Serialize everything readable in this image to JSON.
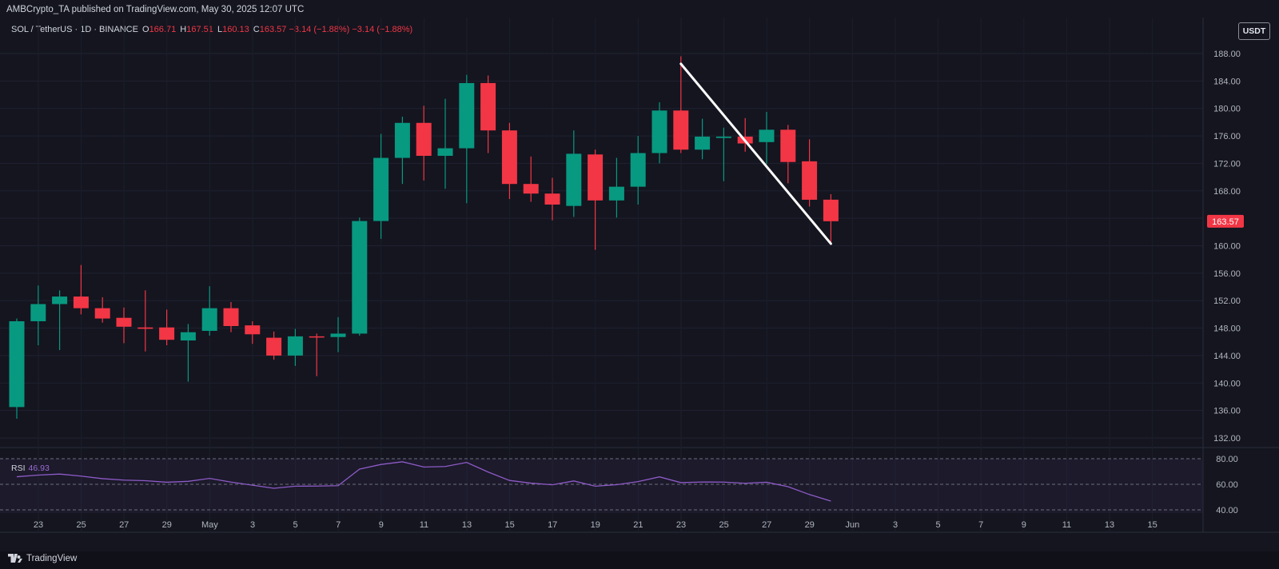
{
  "header": {
    "published": "AMBCrypto_TA published on TradingView.com, May 30, 2025 12:07 UTC"
  },
  "symbol": {
    "title": "SOL / TetherUS · 1D · BINANCE",
    "o_label": "O",
    "o": "166.71",
    "h_label": "H",
    "h": "167.51",
    "l_label": "L",
    "l": "160.13",
    "c_label": "C",
    "c": "163.57",
    "change": "−3.14 (−1.88%)",
    "change2": "−3.14 (−1.88%)"
  },
  "currency_button": "USDT",
  "rsi": {
    "name": "RSI",
    "value": "46.93"
  },
  "footer": {
    "brand": "TradingView"
  },
  "colors": {
    "up": "#089981",
    "down": "#f23645",
    "rsi_line": "#8e5bc7",
    "background": "#14151f",
    "trendline": "#ffffff"
  },
  "chart_data": {
    "type": "candlestick",
    "price_axis": {
      "ticks": [
        "188.00",
        "184.00",
        "180.00",
        "176.00",
        "172.00",
        "168.00",
        "164.00",
        "160.00",
        "156.00",
        "152.00",
        "148.00",
        "144.00",
        "140.00",
        "136.00",
        "132.00"
      ],
      "last_price_label": "163.57"
    },
    "x_axis": {
      "ticks": [
        "23",
        "25",
        "27",
        "29",
        "May",
        "3",
        "5",
        "7",
        "9",
        "11",
        "13",
        "15",
        "17",
        "19",
        "21",
        "23",
        "25",
        "27",
        "29",
        "Jun",
        "3",
        "5",
        "7",
        "9",
        "11",
        "13",
        "15"
      ]
    },
    "candles": [
      {
        "date": "2025-04-22",
        "o": 136.5,
        "h": 149.4,
        "l": 134.8,
        "c": 149.0
      },
      {
        "date": "2025-04-23",
        "o": 149.0,
        "h": 154.2,
        "l": 145.5,
        "c": 151.5
      },
      {
        "date": "2025-04-24",
        "o": 151.5,
        "h": 153.5,
        "l": 144.8,
        "c": 152.6
      },
      {
        "date": "2025-04-25",
        "o": 152.6,
        "h": 157.2,
        "l": 150.0,
        "c": 150.9
      },
      {
        "date": "2025-04-26",
        "o": 150.9,
        "h": 152.5,
        "l": 148.8,
        "c": 149.4
      },
      {
        "date": "2025-04-27",
        "o": 149.5,
        "h": 151.0,
        "l": 145.8,
        "c": 148.2
      },
      {
        "date": "2025-04-28",
        "o": 148.1,
        "h": 153.5,
        "l": 144.6,
        "c": 147.9
      },
      {
        "date": "2025-04-29",
        "o": 148.1,
        "h": 150.7,
        "l": 145.5,
        "c": 146.3
      },
      {
        "date": "2025-04-30",
        "o": 146.2,
        "h": 148.6,
        "l": 140.2,
        "c": 147.4
      },
      {
        "date": "2025-05-01",
        "o": 147.6,
        "h": 154.1,
        "l": 146.9,
        "c": 150.9
      },
      {
        "date": "2025-05-02",
        "o": 150.9,
        "h": 151.8,
        "l": 147.4,
        "c": 148.3
      },
      {
        "date": "2025-05-03",
        "o": 148.4,
        "h": 149.0,
        "l": 145.7,
        "c": 147.1
      },
      {
        "date": "2025-05-04",
        "o": 146.6,
        "h": 147.5,
        "l": 143.4,
        "c": 144.0
      },
      {
        "date": "2025-05-05",
        "o": 144.0,
        "h": 147.9,
        "l": 142.5,
        "c": 146.8
      },
      {
        "date": "2025-05-06",
        "o": 146.8,
        "h": 147.2,
        "l": 141.0,
        "c": 146.7
      },
      {
        "date": "2025-05-07",
        "o": 146.7,
        "h": 149.6,
        "l": 144.5,
        "c": 147.2
      },
      {
        "date": "2025-05-08",
        "o": 147.2,
        "h": 164.1,
        "l": 146.9,
        "c": 163.6
      },
      {
        "date": "2025-05-09",
        "o": 163.6,
        "h": 176.3,
        "l": 161.0,
        "c": 172.8
      },
      {
        "date": "2025-05-10",
        "o": 172.8,
        "h": 178.8,
        "l": 169.0,
        "c": 177.9
      },
      {
        "date": "2025-05-11",
        "o": 177.9,
        "h": 180.4,
        "l": 169.5,
        "c": 173.1
      },
      {
        "date": "2025-05-12",
        "o": 173.1,
        "h": 181.4,
        "l": 168.3,
        "c": 174.2
      },
      {
        "date": "2025-05-13",
        "o": 174.2,
        "h": 184.9,
        "l": 166.2,
        "c": 183.7
      },
      {
        "date": "2025-05-14",
        "o": 183.7,
        "h": 184.8,
        "l": 173.5,
        "c": 176.8
      },
      {
        "date": "2025-05-15",
        "o": 176.8,
        "h": 177.9,
        "l": 166.8,
        "c": 169.0
      },
      {
        "date": "2025-05-16",
        "o": 169.0,
        "h": 173.0,
        "l": 166.4,
        "c": 167.6
      },
      {
        "date": "2025-05-17",
        "o": 167.6,
        "h": 169.9,
        "l": 163.7,
        "c": 166.0
      },
      {
        "date": "2025-05-18",
        "o": 165.8,
        "h": 176.8,
        "l": 164.2,
        "c": 173.4
      },
      {
        "date": "2025-05-19",
        "o": 173.3,
        "h": 174.0,
        "l": 159.4,
        "c": 166.6
      },
      {
        "date": "2025-05-20",
        "o": 166.6,
        "h": 172.8,
        "l": 164.1,
        "c": 168.6
      },
      {
        "date": "2025-05-21",
        "o": 168.6,
        "h": 176.0,
        "l": 166.0,
        "c": 173.5
      },
      {
        "date": "2025-05-22",
        "o": 173.5,
        "h": 180.9,
        "l": 172.0,
        "c": 179.7
      },
      {
        "date": "2025-05-23",
        "o": 179.7,
        "h": 187.6,
        "l": 173.5,
        "c": 174.0
      },
      {
        "date": "2025-05-24",
        "o": 174.0,
        "h": 178.5,
        "l": 172.6,
        "c": 175.9
      },
      {
        "date": "2025-05-25",
        "o": 175.7,
        "h": 177.2,
        "l": 169.4,
        "c": 175.9
      },
      {
        "date": "2025-05-26",
        "o": 175.9,
        "h": 178.6,
        "l": 173.7,
        "c": 174.9
      },
      {
        "date": "2025-05-27",
        "o": 175.1,
        "h": 179.5,
        "l": 171.9,
        "c": 176.9
      },
      {
        "date": "2025-05-28",
        "o": 176.9,
        "h": 177.6,
        "l": 169.1,
        "c": 172.2
      },
      {
        "date": "2025-05-29",
        "o": 172.3,
        "h": 175.5,
        "l": 165.7,
        "c": 166.7
      },
      {
        "date": "2025-05-30",
        "o": 166.71,
        "h": 167.51,
        "l": 160.13,
        "c": 163.57
      }
    ],
    "rsi_series": {
      "name": "RSI",
      "levels": [
        80,
        60,
        40
      ],
      "ticks": [
        "80.00",
        "60.00",
        "40.00"
      ],
      "values": [
        65.9,
        67.2,
        68.0,
        66.4,
        64.4,
        63.3,
        62.8,
        61.6,
        62.3,
        64.6,
        61.7,
        59.3,
        56.9,
        58.5,
        58.6,
        58.9,
        71.9,
        75.5,
        77.6,
        73.5,
        73.9,
        77.1,
        69.6,
        63.0,
        60.9,
        59.6,
        62.6,
        58.5,
        59.7,
        62.1,
        65.8,
        61.3,
        61.8,
        61.7,
        60.8,
        61.6,
        58.1,
        52.0,
        46.9
      ]
    },
    "trendline": {
      "from": {
        "date": "2025-05-23",
        "price": 186.5
      },
      "to": {
        "date": "2025-05-30",
        "price": 160.3
      }
    }
  }
}
